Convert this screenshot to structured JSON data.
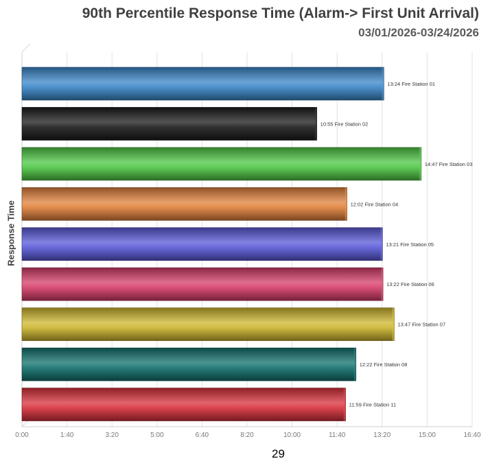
{
  "chart_data": {
    "type": "bar",
    "orientation": "horizontal",
    "title": "90th Percentile Response Time (Alarm-> First Unit Arrival)",
    "subtitle": "03/01/2026-03/24/2026",
    "ylabel": "Response Time",
    "xlim_seconds": [
      0,
      1000
    ],
    "x_ticks": [
      "0:00",
      "1:40",
      "3:20",
      "5:00",
      "6:40",
      "8:20",
      "10:00",
      "11:40",
      "13:20",
      "15:00",
      "16:40"
    ],
    "grid": true,
    "bars": [
      {
        "label": "13:24 Fire Station 01",
        "value_seconds": 804,
        "color": "#3a86c8"
      },
      {
        "label": "10:55 Fire Station 02",
        "value_seconds": 655,
        "color": "#1a1a1a"
      },
      {
        "label": "14:47 Fire Station 03",
        "value_seconds": 887,
        "color": "#4ec744"
      },
      {
        "label": "12:02 Fire Station 04",
        "value_seconds": 722,
        "color": "#e0803a"
      },
      {
        "label": "13:21 Fire Station 05",
        "value_seconds": 801,
        "color": "#5858d8"
      },
      {
        "label": "13:22 Fire Station 06",
        "value_seconds": 802,
        "color": "#d63c68"
      },
      {
        "label": "13:47 Fire Station 07",
        "value_seconds": 827,
        "color": "#cdb62e"
      },
      {
        "label": "12:22 Fire Station 08",
        "value_seconds": 742,
        "color": "#11706c"
      },
      {
        "label": "11:59 Fire Station 11",
        "value_seconds": 719,
        "color": "#d8303a"
      }
    ]
  },
  "page_number": "29"
}
